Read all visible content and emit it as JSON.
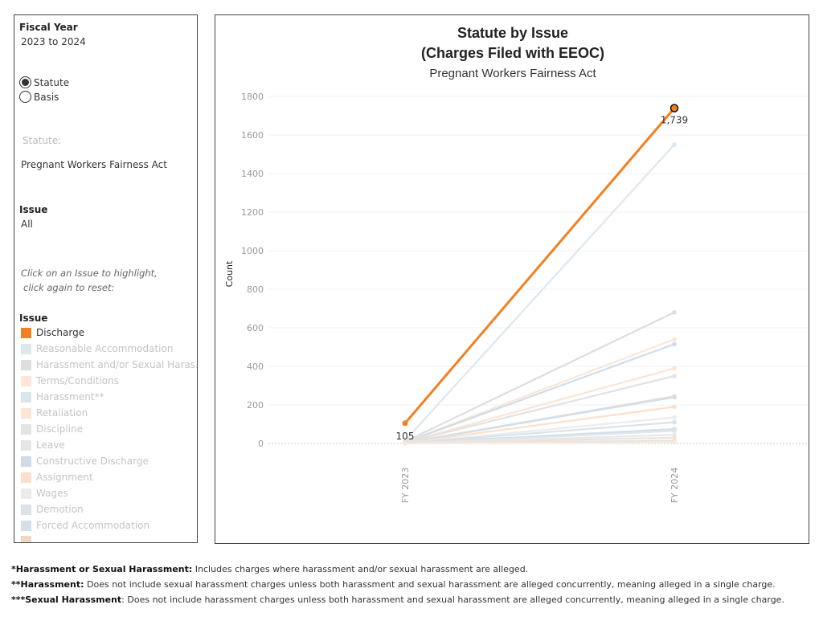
{
  "filters": {
    "fiscal_year_label": "Fiscal Year",
    "fiscal_year_value": "2023 to 2024",
    "radio_options": [
      {
        "label": "Statute",
        "selected": true
      },
      {
        "label": "Basis",
        "selected": false
      }
    ],
    "statute_label": "Statute:",
    "statute_value": "Pregnant Workers Fairness Act",
    "issue_label": "Issue",
    "issue_value": "All",
    "hint_line1": "Click on an Issue to highlight,",
    "hint_line2": "click again to reset:"
  },
  "legend": {
    "title": "Issue",
    "items": [
      {
        "label": "Discharge",
        "color": "#f28020",
        "active": true
      },
      {
        "label": "Reasonable Accommodation",
        "color": "#dde7ee",
        "active": false
      },
      {
        "label": "Harassment and/or Sexual Haras..",
        "color": "#dedede",
        "active": false
      },
      {
        "label": "Terms/Conditions",
        "color": "#fbe6d8",
        "active": false
      },
      {
        "label": "Harassment**",
        "color": "#dae5ee",
        "active": false
      },
      {
        "label": "Retaliation",
        "color": "#fbe5d6",
        "active": false
      },
      {
        "label": "Discipline",
        "color": "#e4e4e4",
        "active": false
      },
      {
        "label": "Leave",
        "color": "#e5e5e5",
        "active": false
      },
      {
        "label": "Constructive Discharge",
        "color": "#cfdce7",
        "active": false
      },
      {
        "label": "Assignment",
        "color": "#fbe0cc",
        "active": false
      },
      {
        "label": "Wages",
        "color": "#ececec",
        "active": false
      },
      {
        "label": "Demotion",
        "color": "#d9e3e8",
        "active": false
      },
      {
        "label": "Forced Accommodation",
        "color": "#d5dfe8",
        "active": false
      }
    ]
  },
  "chart_data": {
    "type": "line",
    "title": "Statute by Issue",
    "subtitle": "(Charges Filed with EEOC)",
    "subtitle2": "Pregnant Workers Fairness Act",
    "ylabel": "Count",
    "xlabel": "",
    "categories": [
      "FY 2023",
      "FY 2024"
    ],
    "ylim": [
      0,
      1800
    ],
    "yticks": [
      0,
      200,
      400,
      600,
      800,
      1000,
      1200,
      1400,
      1600,
      1800
    ],
    "grid": true,
    "highlight": {
      "name": "Discharge",
      "values": [
        105,
        1739
      ],
      "labels": [
        "105",
        "1,739"
      ],
      "color": "#f28020"
    },
    "background_series": [
      {
        "values": [
          15,
          1550
        ],
        "color": "#dde7ee"
      },
      {
        "values": [
          10,
          680
        ],
        "color": "#dedede"
      },
      {
        "values": [
          8,
          540
        ],
        "color": "#fbe6d8"
      },
      {
        "values": [
          6,
          515
        ],
        "color": "#d0dde8"
      },
      {
        "values": [
          6,
          390
        ],
        "color": "#fbe5d6"
      },
      {
        "values": [
          5,
          350
        ],
        "color": "#e2e2e2"
      },
      {
        "values": [
          4,
          245
        ],
        "color": "#e0e0e0"
      },
      {
        "values": [
          3,
          240
        ],
        "color": "#d3dee8"
      },
      {
        "values": [
          3,
          190
        ],
        "color": "#fbe0cc"
      },
      {
        "values": [
          2,
          135
        ],
        "color": "#ececec"
      },
      {
        "values": [
          2,
          110
        ],
        "color": "#d9e3e8"
      },
      {
        "values": [
          2,
          75
        ],
        "color": "#d5dfe8"
      },
      {
        "values": [
          1,
          65
        ],
        "color": "#dde6ee"
      },
      {
        "values": [
          1,
          45
        ],
        "color": "#e8e8e8"
      },
      {
        "values": [
          1,
          30
        ],
        "color": "#f0e2d8"
      },
      {
        "values": [
          0,
          15
        ],
        "color": "#e5e5e5"
      },
      {
        "values": [
          0,
          5
        ],
        "color": "#fbe9dd"
      }
    ]
  },
  "footnotes": [
    {
      "term": "*Harassment or Sexual Harassment:",
      "text": " Includes charges where  harassment and/or sexual harassment are alleged."
    },
    {
      "term": "**Harassment:",
      "text": " Does not include sexual harassment charges unless both harassment and sexual harassment are alleged concurrently, meaning alleged in a single charge."
    },
    {
      "term": "***Sexual Harassment",
      "text": ": Does not include  harassment charges unless both harassment and sexual harassment are alleged concurrently, meaning alleged in a single charge."
    }
  ]
}
